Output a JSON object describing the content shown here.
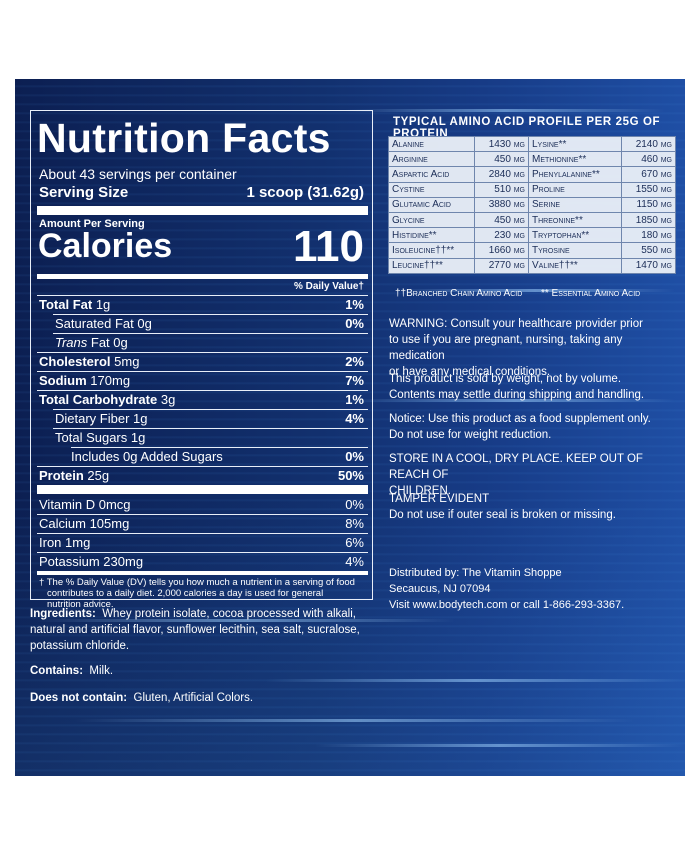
{
  "nutrition": {
    "title": "Nutrition Facts",
    "servings": "About 43 servings per container",
    "serving_size_label": "Serving Size",
    "serving_size_value": "1 scoop (31.62g)",
    "amount_per_serving": "Amount Per Serving",
    "calories_label": "Calories",
    "calories_value": "110",
    "dv_header": "% Daily Value†",
    "rows": [
      {
        "label": "Total Fat",
        "amount": "1g",
        "dv": "1%"
      },
      {
        "label": "Saturated Fat 0g",
        "dv": "0%"
      },
      {
        "label_italic": "Trans",
        "label_rest": " Fat 0g"
      },
      {
        "label": "Cholesterol",
        "amount": "5mg",
        "dv": "2%"
      },
      {
        "label": "Sodium",
        "amount": "170mg",
        "dv": "7%"
      },
      {
        "label": "Total Carbohydrate",
        "amount": "3g",
        "dv": "1%"
      },
      {
        "label": "Dietary Fiber 1g",
        "dv": "4%"
      },
      {
        "label": "Total Sugars 1g"
      },
      {
        "label": "Includes 0g Added Sugars",
        "dv": "0%"
      },
      {
        "label": "Protein",
        "amount": "25g",
        "dv": "50%"
      }
    ],
    "vitamins": [
      {
        "label": "Vitamin D 0mcg",
        "dv": "0%"
      },
      {
        "label": "Calcium 105mg",
        "dv": "8%"
      },
      {
        "label": "Iron 1mg",
        "dv": "6%"
      },
      {
        "label": "Potassium 230mg",
        "dv": "4%"
      }
    ],
    "footnote_line1": "† The % Daily Value (DV) tells you how much a nutrient in a serving of food",
    "footnote_line2": "contributes to a daily diet. 2,000 calories a day is used for general",
    "footnote_line3": "nutrition advice."
  },
  "ingredients": {
    "label": "Ingredients:",
    "line1": "Whey protein isolate, cocoa processed with alkali,",
    "line2": "natural and artificial flavor, sunflower lecithin, sea salt, sucralose,",
    "line3": "potassium chloride.",
    "contains_label": "Contains:",
    "contains_value": "Milk.",
    "not_contain_label": "Does not contain:",
    "not_contain_value": "Gluten, Artificial Colors."
  },
  "amino": {
    "title": "Typical Amino Acid Profile per 25g of Protein",
    "rows": [
      [
        "Alanine",
        "1430 mg",
        "Lysine**",
        "2140 mg"
      ],
      [
        "Arginine",
        "450 mg",
        "Methionine**",
        "460 mg"
      ],
      [
        "Aspartic Acid",
        "2840 mg",
        "Phenylalanine**",
        "670 mg"
      ],
      [
        "Cystine",
        "510 mg",
        "Proline",
        "1550 mg"
      ],
      [
        "Glutamic Acid",
        "3880 mg",
        "Serine",
        "1150 mg"
      ],
      [
        "Glycine",
        "450 mg",
        "Threonine**",
        "1850 mg"
      ],
      [
        "Histidine**",
        "230 mg",
        "Tryptophan**",
        "180 mg"
      ],
      [
        "Isoleucine††**",
        "1660 mg",
        "Tyrosine",
        "550 mg"
      ],
      [
        "Leucine††**",
        "2770 mg",
        "Valine††**",
        "1470 mg"
      ]
    ],
    "foot_left": "††Branched Chain Amino Acid",
    "foot_right": "** Essential Amino Acid"
  },
  "notices": {
    "warning_1": "WARNING: Consult your healthcare provider prior",
    "warning_2": "to use if you are pregnant, nursing, taking any medication",
    "warning_3": "or have any medical conditions.",
    "weight_1": "This product is sold by weight, not by volume.",
    "weight_2": "Contents may settle during shipping and handling.",
    "notice_1": "Notice: Use this product as a food supplement only.",
    "notice_2": "Do not use for weight reduction.",
    "store_1": "STORE IN A COOL, DRY PLACE. KEEP OUT OF REACH OF",
    "store_2": "CHILDREN.",
    "tamper_1": "TAMPER EVIDENT",
    "tamper_2": "Do not use if outer seal is broken or missing.",
    "dist_1": "Distributed by: The Vitamin Shoppe",
    "dist_2": "Secaucus, NJ 07094",
    "dist_3": "Visit www.bodytech.com or call 1-866-293-3367."
  }
}
